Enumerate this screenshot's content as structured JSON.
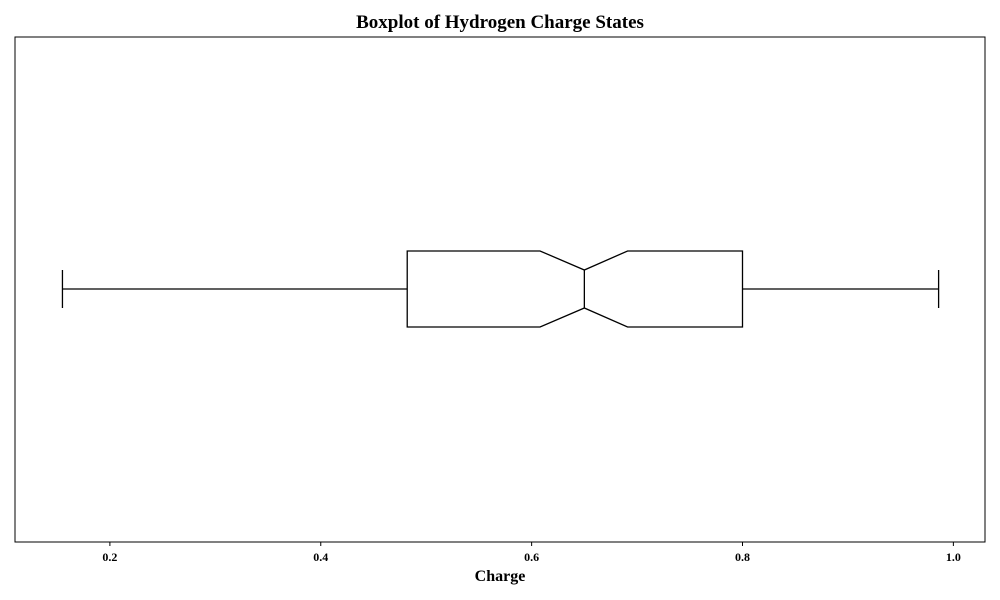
{
  "chart_data": {
    "type": "boxplot",
    "orientation": "horizontal",
    "title": "Boxplot of Hydrogen Charge States",
    "xlabel": "Charge",
    "ylabel": "",
    "xlim": [
      0.11,
      1.03
    ],
    "xticks": [
      0.2,
      0.4,
      0.6,
      0.8,
      1.0
    ],
    "xtick_labels": [
      "0.2",
      "0.4",
      "0.6",
      "0.8",
      "1.0"
    ],
    "notched": true,
    "grid": false,
    "box": {
      "whisker_low": 0.155,
      "q1": 0.482,
      "median": 0.65,
      "q3": 0.8,
      "whisker_high": 0.986,
      "notch_low": 0.608,
      "notch_high": 0.691
    }
  }
}
